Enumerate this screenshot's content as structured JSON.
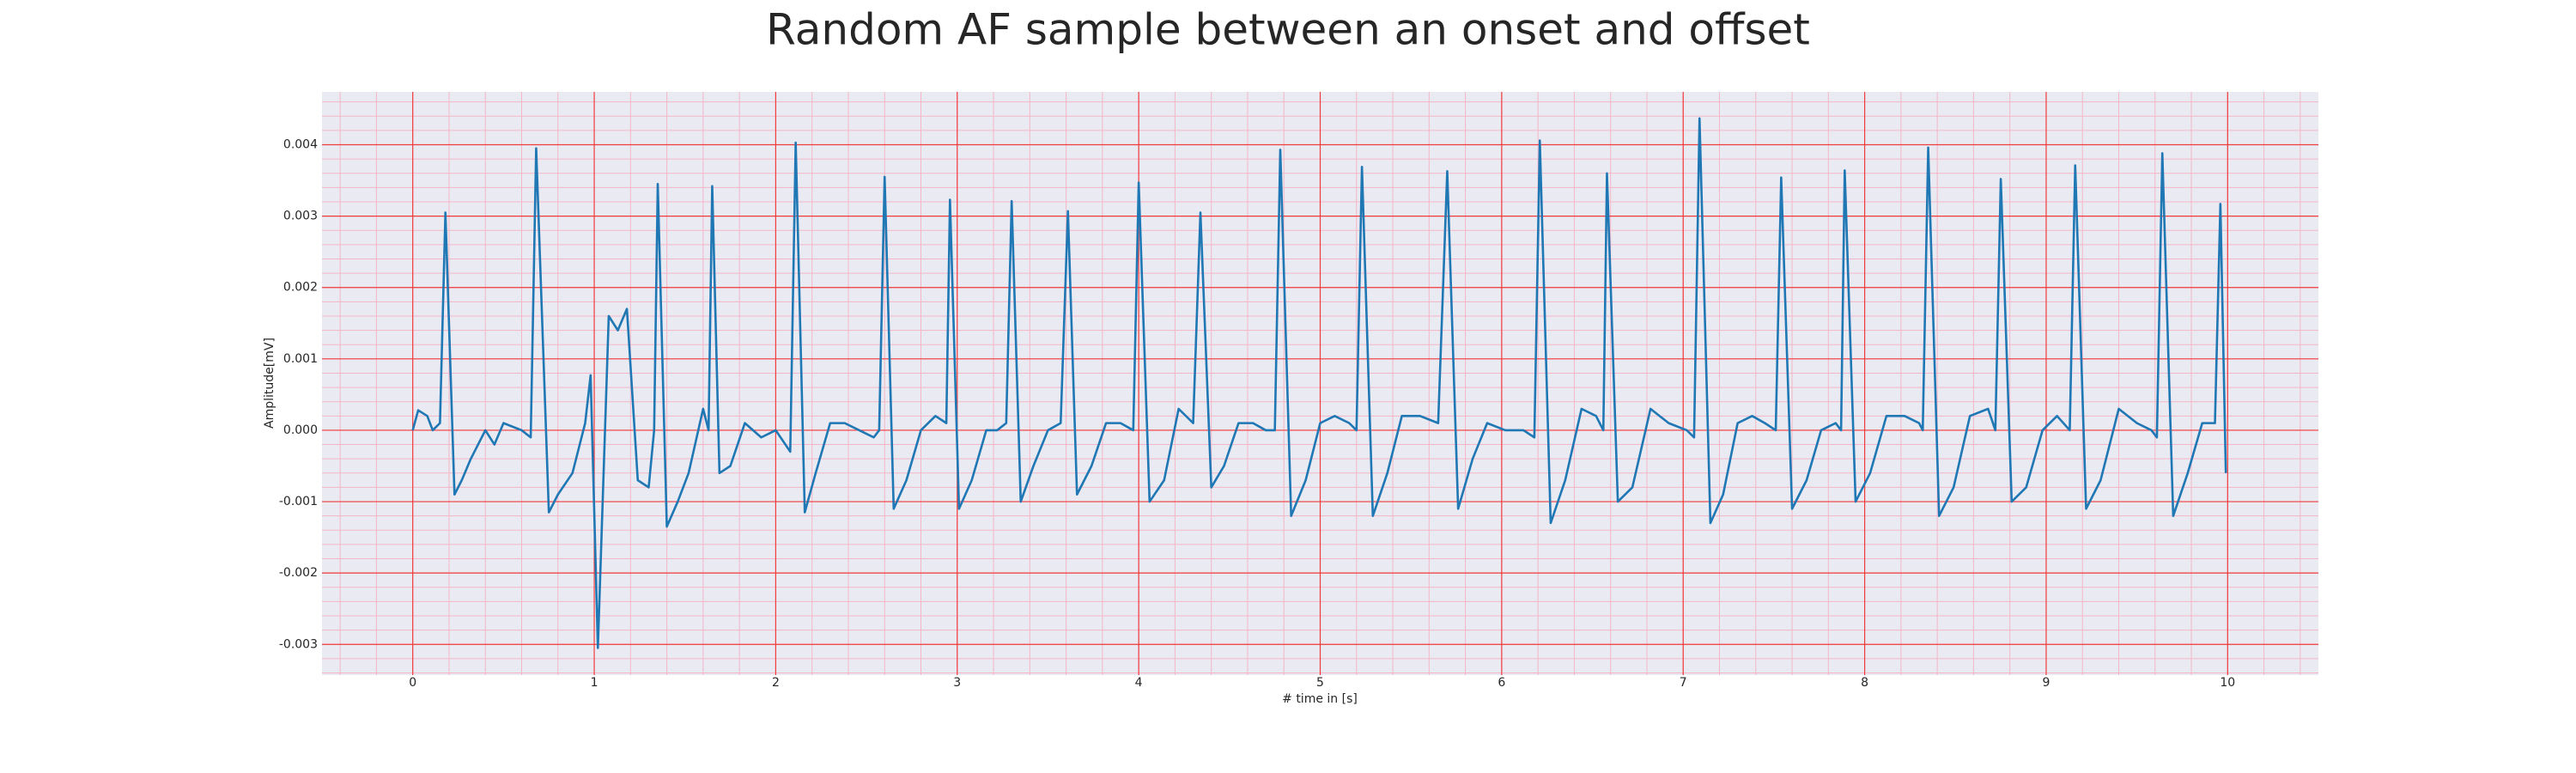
{
  "chart_data": {
    "type": "line",
    "title": "Random AF sample between an onset and offset",
    "xlabel": "# time in [s]",
    "ylabel": "Amplitude[mV]",
    "color": "#1f77b4",
    "grid": true,
    "minor_grid": true,
    "xlim": [
      -0.5,
      10.5
    ],
    "ylim": [
      -0.00343,
      0.00474
    ],
    "xticks": [
      0,
      1,
      2,
      3,
      4,
      5,
      6,
      7,
      8,
      9,
      10
    ],
    "yticks": [
      -0.003,
      -0.002,
      -0.001,
      {
        "value": 0,
        "label": "0.000"
      },
      0.001,
      0.002,
      0.003,
      0.004
    ],
    "x": [
      0,
      0.03,
      0.08,
      0.11,
      0.15,
      0.18,
      0.23,
      0.27,
      0.32,
      0.4,
      0.45,
      0.5,
      0.6,
      0.65,
      0.68,
      0.75,
      0.8,
      0.88,
      0.95,
      0.98,
      1.02,
      1.08,
      1.13,
      1.18,
      1.24,
      1.3,
      1.33,
      1.35,
      1.4,
      1.46,
      1.52,
      1.6,
      1.63,
      1.65,
      1.69,
      1.75,
      1.83,
      1.92,
      2,
      2.08,
      2.11,
      2.16,
      2.22,
      2.3,
      2.38,
      2.46,
      2.54,
      2.57,
      2.6,
      2.65,
      2.72,
      2.8,
      2.88,
      2.94,
      2.96,
      3.01,
      3.08,
      3.16,
      3.22,
      3.27,
      3.3,
      3.35,
      3.42,
      3.5,
      3.57,
      3.61,
      3.66,
      3.74,
      3.82,
      3.9,
      3.97,
      4,
      4.06,
      4.14,
      4.22,
      4.3,
      4.34,
      4.4,
      4.47,
      4.55,
      4.63,
      4.7,
      4.75,
      4.78,
      4.84,
      4.92,
      5,
      5.08,
      5.16,
      5.2,
      5.23,
      5.29,
      5.37,
      5.45,
      5.55,
      5.65,
      5.7,
      5.76,
      5.84,
      5.92,
      6.02,
      6.12,
      6.18,
      6.21,
      6.27,
      6.35,
      6.44,
      6.52,
      6.56,
      6.58,
      6.64,
      6.72,
      6.82,
      6.92,
      7.02,
      7.06,
      7.09,
      7.15,
      7.22,
      7.3,
      7.38,
      7.45,
      7.51,
      7.54,
      7.6,
      7.68,
      7.76,
      7.84,
      7.87,
      7.89,
      7.95,
      8.03,
      8.12,
      8.22,
      8.3,
      8.32,
      8.35,
      8.41,
      8.49,
      8.58,
      8.68,
      8.72,
      8.75,
      8.81,
      8.89,
      8.98,
      9.06,
      9.13,
      9.16,
      9.22,
      9.3,
      9.4,
      9.5,
      9.58,
      9.61,
      9.64,
      9.7,
      9.78,
      9.86,
      9.93,
      9.96,
      9.99
    ],
    "values": [
      0,
      0.00028,
      0.0002,
      0,
      0.0001,
      0.00305,
      -0.0009,
      -0.0007,
      -0.0004,
      0,
      -0.0002,
      0.0001,
      0,
      -0.0001,
      0.00395,
      -0.00115,
      -0.0009,
      -0.0006,
      0.0001,
      0.00077,
      -0.00305,
      0.0016,
      0.0014,
      0.0017,
      -0.0007,
      -0.0008,
      0,
      0.00345,
      -0.00135,
      -0.001,
      -0.0006,
      0.0003,
      0,
      0.00342,
      -0.0006,
      -0.0005,
      0.0001,
      -0.0001,
      0,
      -0.0003,
      0.00403,
      -0.00115,
      -0.0006,
      0.0001,
      0.0001,
      0,
      -0.0001,
      0,
      0.00355,
      -0.0011,
      -0.0007,
      0,
      0.0002,
      0.0001,
      0.00323,
      -0.0011,
      -0.0007,
      0,
      0,
      0.0001,
      0.00321,
      -0.001,
      -0.0005,
      0,
      0.0001,
      0.00307,
      -0.0009,
      -0.0005,
      0.0001,
      0.0001,
      0,
      0.00347,
      -0.001,
      -0.0007,
      0.0003,
      0.0001,
      0.00305,
      -0.0008,
      -0.0005,
      0.0001,
      0.0001,
      0,
      0,
      0.00393,
      -0.0012,
      -0.0007,
      0.0001,
      0.0002,
      0.0001,
      0,
      0.00369,
      -0.0012,
      -0.0006,
      0.0002,
      0.0002,
      0.0001,
      0.00363,
      -0.0011,
      -0.0004,
      0.0001,
      0,
      0,
      -0.0001,
      0.00406,
      -0.0013,
      -0.0007,
      0.0003,
      0.0002,
      0,
      0.0036,
      -0.001,
      -0.0008,
      0.0003,
      0.0001,
      0,
      -0.0001,
      0.00437,
      -0.0013,
      -0.0009,
      0.0001,
      0.0002,
      0.0001,
      0,
      0.00354,
      -0.0011,
      -0.0007,
      0,
      0.0001,
      0,
      0.00364,
      -0.001,
      -0.0006,
      0.0002,
      0.0002,
      0.0001,
      0,
      0.00396,
      -0.0012,
      -0.0008,
      0.0002,
      0.0003,
      0,
      0.00352,
      -0.001,
      -0.0008,
      0,
      0.0002,
      0,
      0.00371,
      -0.0011,
      -0.0007,
      0.0003,
      0.0001,
      0,
      -0.0001,
      0.00388,
      -0.0012,
      -0.0006,
      0.0001,
      0.0001,
      0.00317,
      -0.0006
    ]
  }
}
